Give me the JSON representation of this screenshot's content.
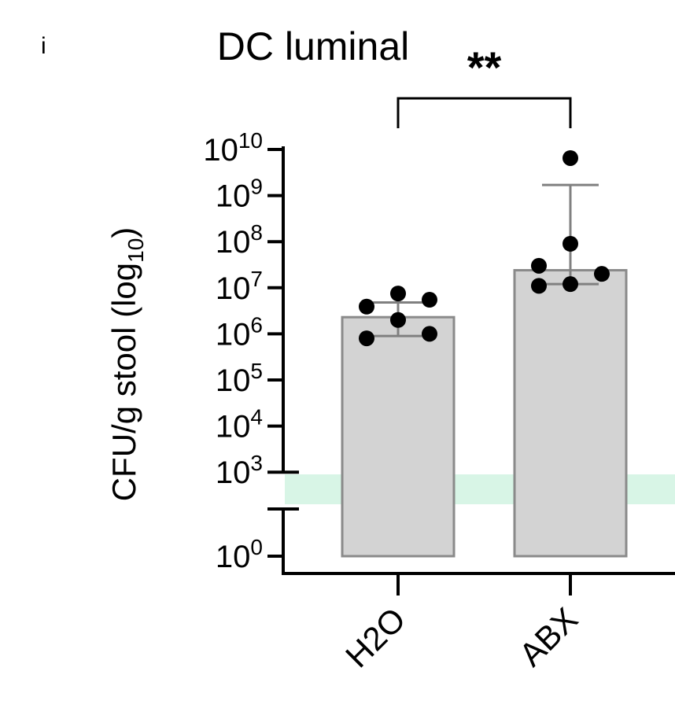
{
  "chart_data": {
    "type": "bar",
    "panel_label": "i",
    "title": "DC luminal",
    "ylabel": "CFU/g stool (log",
    "ylabel_subscript": "10",
    "ylabel_close": ")",
    "y_scale": "log10 with broken axis between 10^0 and 10^3",
    "categories": [
      "H2O",
      "ABX"
    ],
    "values": [
      2300000,
      24000000
    ],
    "error_bars": [
      {
        "low": 900000,
        "high": 4800000
      },
      {
        "low": 12000000,
        "high": 1700000000
      }
    ],
    "points": [
      [
        800000,
        3900000,
        2000000,
        5500000,
        1000000,
        7500000
      ],
      [
        6500000000,
        90000000,
        30000000,
        20000000,
        12000000,
        11000000
      ]
    ],
    "y_ticks": [
      {
        "base": "10",
        "exp": "0"
      },
      {
        "base": "10",
        "exp": "3"
      },
      {
        "base": "10",
        "exp": "4"
      },
      {
        "base": "10",
        "exp": "5"
      },
      {
        "base": "10",
        "exp": "6"
      },
      {
        "base": "10",
        "exp": "7"
      },
      {
        "base": "10",
        "exp": "8"
      },
      {
        "base": "10",
        "exp": "9"
      },
      {
        "base": "10",
        "exp": "10"
      }
    ],
    "significance": {
      "between": [
        "H2O",
        "ABX"
      ],
      "label": "**"
    },
    "colors": {
      "bar_fill": "#d3d3d3",
      "bar_stroke": "#8a8a8a",
      "error_bar": "#808080",
      "points": "#000000",
      "limit_band": "#d8f5e6"
    },
    "grid": false,
    "legend": "none"
  }
}
